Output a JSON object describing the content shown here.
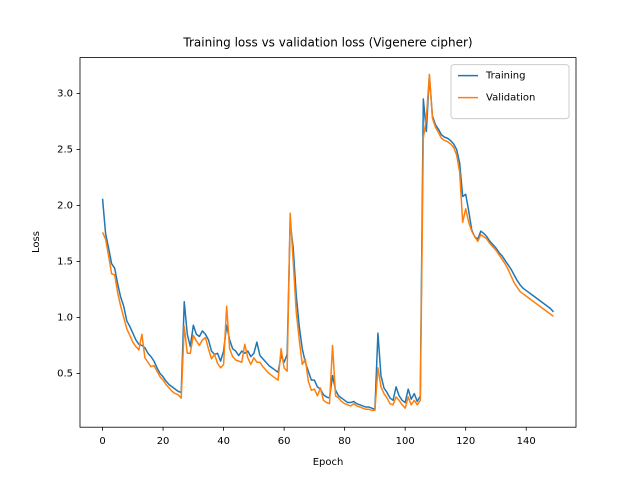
{
  "chart_data": {
    "type": "line",
    "title": "Training loss vs validation loss (Vigenere cipher)",
    "x_label": "Epoch",
    "y_label": "Loss",
    "x": [
      0,
      1,
      2,
      3,
      4,
      5,
      6,
      7,
      8,
      9,
      10,
      11,
      12,
      13,
      14,
      15,
      16,
      17,
      18,
      19,
      20,
      21,
      22,
      23,
      24,
      25,
      26,
      27,
      28,
      29,
      30,
      31,
      32,
      33,
      34,
      35,
      36,
      37,
      38,
      39,
      40,
      41,
      42,
      43,
      44,
      45,
      46,
      47,
      48,
      49,
      50,
      51,
      52,
      53,
      54,
      55,
      56,
      57,
      58,
      59,
      60,
      61,
      62,
      63,
      64,
      65,
      66,
      67,
      68,
      69,
      70,
      71,
      72,
      73,
      74,
      75,
      76,
      77,
      78,
      79,
      80,
      81,
      82,
      83,
      84,
      85,
      86,
      87,
      88,
      89,
      90,
      91,
      92,
      93,
      94,
      95,
      96,
      97,
      98,
      99,
      100,
      101,
      102,
      103,
      104,
      105,
      106,
      107,
      108,
      109,
      110,
      111,
      112,
      113,
      114,
      115,
      116,
      117,
      118,
      119,
      120,
      121,
      122,
      123,
      124,
      125,
      126,
      127,
      128,
      129,
      130,
      131,
      132,
      133,
      134,
      135,
      136,
      137,
      138,
      139,
      140,
      141,
      142,
      143,
      144,
      145,
      146,
      147,
      148,
      149
    ],
    "series": [
      {
        "name": "Training",
        "color": "#1f77b4",
        "values": [
          2.06,
          1.75,
          1.62,
          1.48,
          1.44,
          1.3,
          1.18,
          1.1,
          0.97,
          0.92,
          0.86,
          0.8,
          0.76,
          0.75,
          0.73,
          0.68,
          0.65,
          0.61,
          0.55,
          0.5,
          0.47,
          0.43,
          0.4,
          0.38,
          0.36,
          0.34,
          0.33,
          1.14,
          0.85,
          0.74,
          0.93,
          0.85,
          0.83,
          0.88,
          0.85,
          0.8,
          0.7,
          0.67,
          0.68,
          0.61,
          0.7,
          0.93,
          0.8,
          0.72,
          0.7,
          0.66,
          0.7,
          0.68,
          0.7,
          0.65,
          0.68,
          0.78,
          0.66,
          0.63,
          0.6,
          0.57,
          0.55,
          0.53,
          0.51,
          0.66,
          0.6,
          0.67,
          1.85,
          1.62,
          1.2,
          0.92,
          0.72,
          0.6,
          0.52,
          0.44,
          0.44,
          0.38,
          0.36,
          0.31,
          0.29,
          0.28,
          0.48,
          0.35,
          0.3,
          0.28,
          0.26,
          0.24,
          0.24,
          0.25,
          0.23,
          0.22,
          0.21,
          0.2,
          0.2,
          0.19,
          0.18,
          0.86,
          0.48,
          0.37,
          0.33,
          0.28,
          0.26,
          0.38,
          0.3,
          0.26,
          0.24,
          0.36,
          0.27,
          0.32,
          0.25,
          0.3,
          2.95,
          2.66,
          3.16,
          2.8,
          2.72,
          2.68,
          2.63,
          2.61,
          2.6,
          2.58,
          2.55,
          2.5,
          2.38,
          2.08,
          2.1,
          1.95,
          1.78,
          1.72,
          1.7,
          1.77,
          1.75,
          1.72,
          1.68,
          1.65,
          1.62,
          1.58,
          1.55,
          1.51,
          1.47,
          1.43,
          1.38,
          1.33,
          1.29,
          1.26,
          1.24,
          1.22,
          1.2,
          1.18,
          1.16,
          1.14,
          1.12,
          1.1,
          1.08,
          1.05
        ]
      },
      {
        "name": "Validation",
        "color": "#ff7f0e",
        "values": [
          1.76,
          1.7,
          1.55,
          1.39,
          1.38,
          1.22,
          1.1,
          1.0,
          0.9,
          0.84,
          0.78,
          0.74,
          0.71,
          0.85,
          0.64,
          0.6,
          0.56,
          0.57,
          0.52,
          0.47,
          0.44,
          0.4,
          0.37,
          0.34,
          0.32,
          0.31,
          0.28,
          0.92,
          0.68,
          0.68,
          0.84,
          0.79,
          0.75,
          0.8,
          0.82,
          0.72,
          0.63,
          0.67,
          0.59,
          0.55,
          0.58,
          1.1,
          0.72,
          0.65,
          0.62,
          0.61,
          0.6,
          0.76,
          0.64,
          0.58,
          0.64,
          0.6,
          0.6,
          0.56,
          0.53,
          0.5,
          0.48,
          0.46,
          0.44,
          0.72,
          0.55,
          0.52,
          1.93,
          1.5,
          1.05,
          0.8,
          0.58,
          0.63,
          0.43,
          0.35,
          0.36,
          0.3,
          0.37,
          0.26,
          0.24,
          0.23,
          0.75,
          0.3,
          0.28,
          0.25,
          0.23,
          0.22,
          0.21,
          0.23,
          0.21,
          0.2,
          0.19,
          0.18,
          0.18,
          0.17,
          0.17,
          0.55,
          0.38,
          0.32,
          0.28,
          0.23,
          0.22,
          0.29,
          0.26,
          0.22,
          0.19,
          0.29,
          0.22,
          0.26,
          0.22,
          0.26,
          2.6,
          2.78,
          3.17,
          2.78,
          2.7,
          2.65,
          2.6,
          2.58,
          2.57,
          2.55,
          2.52,
          2.45,
          2.3,
          1.85,
          1.97,
          1.85,
          1.77,
          1.72,
          1.68,
          1.74,
          1.72,
          1.7,
          1.66,
          1.63,
          1.6,
          1.56,
          1.52,
          1.48,
          1.43,
          1.37,
          1.31,
          1.27,
          1.23,
          1.21,
          1.19,
          1.17,
          1.15,
          1.13,
          1.11,
          1.09,
          1.07,
          1.05,
          1.03,
          1.01
        ]
      }
    ],
    "xlim": [
      -7.45,
      156.45
    ],
    "ylim": [
      0.02,
      3.32
    ],
    "xticks": [
      0,
      20,
      40,
      60,
      80,
      100,
      120,
      140
    ],
    "yticks": [
      0.5,
      {
        "value": 1,
        "label": "1.0"
      },
      1.5,
      {
        "value": 2,
        "label": "2.0"
      },
      2.5,
      {
        "value": 3,
        "label": "3.0"
      }
    ],
    "grid": false,
    "legend": "upper right"
  }
}
